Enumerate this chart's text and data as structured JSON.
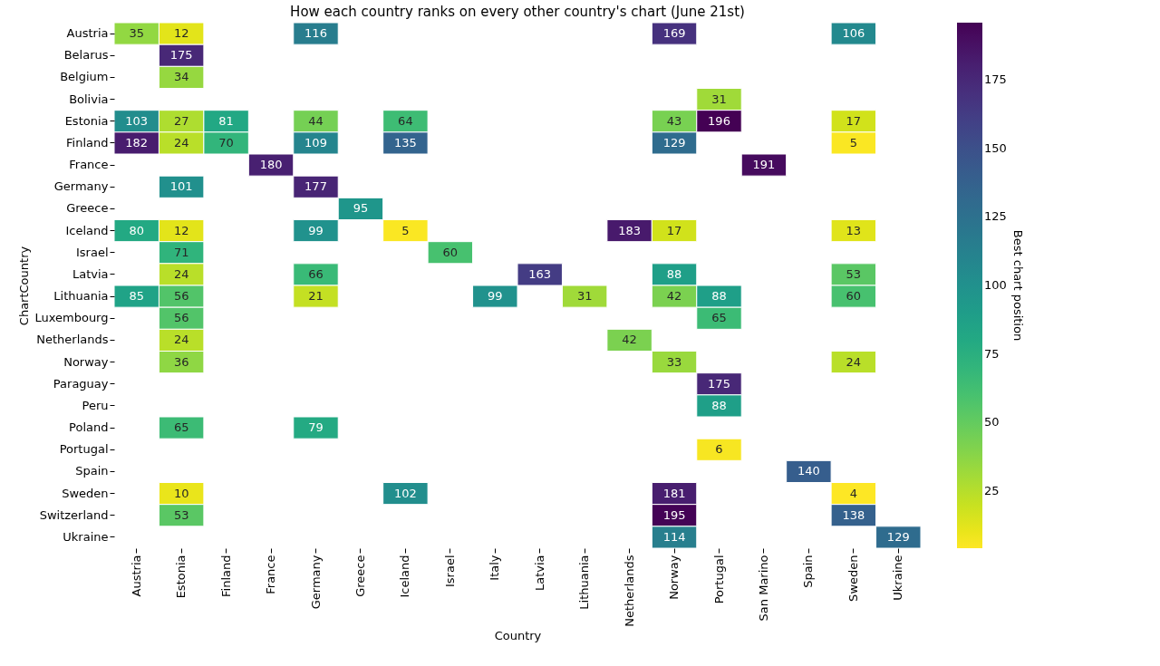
{
  "chart_data": {
    "type": "heatmap",
    "title": "How each country ranks on every other country's chart (June 21st)",
    "xlabel": "Country",
    "ylabel": "ChartCountry",
    "clabel": "Best chart position",
    "categories": [
      "Austria",
      "Estonia",
      "Finland",
      "France",
      "Germany",
      "Greece",
      "Iceland",
      "Israel",
      "Italy",
      "Latvia",
      "Lithuania",
      "Netherlands",
      "Norway",
      "Portugal",
      "San Marino",
      "Spain",
      "Sweden",
      "Ukraine"
    ],
    "y_categories": [
      "Austria",
      "Belarus",
      "Belgium",
      "Bolivia",
      "Estonia",
      "Finland",
      "France",
      "Germany",
      "Greece",
      "Iceland",
      "Israel",
      "Latvia",
      "Lithuania",
      "Luxembourg",
      "Netherlands",
      "Norway",
      "Paraguay",
      "Peru",
      "Poland",
      "Portugal",
      "Spain",
      "Sweden",
      "Switzerland",
      "Ukraine"
    ],
    "cells": [
      [
        35,
        12,
        null,
        null,
        116,
        null,
        null,
        null,
        null,
        null,
        null,
        null,
        169,
        null,
        null,
        null,
        106,
        null
      ],
      [
        null,
        175,
        null,
        null,
        null,
        null,
        null,
        null,
        null,
        null,
        null,
        null,
        null,
        null,
        null,
        null,
        null,
        null
      ],
      [
        null,
        34,
        null,
        null,
        null,
        null,
        null,
        null,
        null,
        null,
        null,
        null,
        null,
        null,
        null,
        null,
        null,
        null
      ],
      [
        null,
        null,
        null,
        null,
        null,
        null,
        null,
        null,
        null,
        null,
        null,
        null,
        null,
        31,
        null,
        null,
        null,
        null
      ],
      [
        103,
        27,
        81,
        null,
        44,
        null,
        64,
        null,
        null,
        null,
        null,
        null,
        43,
        196,
        null,
        null,
        17,
        null
      ],
      [
        182,
        24,
        70,
        null,
        109,
        null,
        135,
        null,
        null,
        null,
        null,
        null,
        129,
        null,
        null,
        null,
        5,
        null
      ],
      [
        null,
        null,
        null,
        180,
        null,
        null,
        null,
        null,
        null,
        null,
        null,
        null,
        null,
        null,
        191,
        null,
        null,
        null
      ],
      [
        null,
        101,
        null,
        null,
        177,
        null,
        null,
        null,
        null,
        null,
        null,
        null,
        null,
        null,
        null,
        null,
        null,
        null
      ],
      [
        null,
        null,
        null,
        null,
        null,
        95,
        null,
        null,
        null,
        null,
        null,
        null,
        null,
        null,
        null,
        null,
        null,
        null
      ],
      [
        80,
        12,
        null,
        null,
        99,
        null,
        5,
        null,
        null,
        null,
        null,
        183,
        17,
        null,
        null,
        null,
        13,
        null
      ],
      [
        null,
        71,
        null,
        null,
        null,
        null,
        null,
        60,
        null,
        null,
        null,
        null,
        null,
        null,
        null,
        null,
        null,
        null
      ],
      [
        null,
        24,
        null,
        null,
        66,
        null,
        null,
        null,
        null,
        163,
        null,
        null,
        88,
        null,
        null,
        null,
        53,
        null
      ],
      [
        85,
        56,
        null,
        null,
        21,
        null,
        null,
        null,
        99,
        null,
        31,
        null,
        42,
        88,
        null,
        null,
        60,
        null
      ],
      [
        null,
        56,
        null,
        null,
        null,
        null,
        null,
        null,
        null,
        null,
        null,
        null,
        null,
        65,
        null,
        null,
        null,
        null
      ],
      [
        null,
        24,
        null,
        null,
        null,
        null,
        null,
        null,
        null,
        null,
        null,
        42,
        null,
        null,
        null,
        null,
        null,
        null
      ],
      [
        null,
        36,
        null,
        null,
        null,
        null,
        null,
        null,
        null,
        null,
        null,
        null,
        33,
        null,
        null,
        null,
        24,
        null
      ],
      [
        null,
        null,
        null,
        null,
        null,
        null,
        null,
        null,
        null,
        null,
        null,
        null,
        null,
        175,
        null,
        null,
        null,
        null
      ],
      [
        null,
        null,
        null,
        null,
        null,
        null,
        null,
        null,
        null,
        null,
        null,
        null,
        null,
        88,
        null,
        null,
        null,
        null
      ],
      [
        null,
        65,
        null,
        null,
        79,
        null,
        null,
        null,
        null,
        null,
        null,
        null,
        null,
        null,
        null,
        null,
        null,
        null
      ],
      [
        null,
        null,
        null,
        null,
        null,
        null,
        null,
        null,
        null,
        null,
        null,
        null,
        null,
        6,
        null,
        null,
        null,
        null
      ],
      [
        null,
        null,
        null,
        null,
        null,
        null,
        null,
        null,
        null,
        null,
        null,
        null,
        null,
        null,
        null,
        140,
        null,
        null
      ],
      [
        null,
        10,
        null,
        null,
        null,
        null,
        102,
        null,
        null,
        null,
        null,
        null,
        181,
        null,
        null,
        null,
        4,
        null
      ],
      [
        null,
        53,
        null,
        null,
        null,
        null,
        null,
        null,
        null,
        null,
        null,
        null,
        195,
        null,
        null,
        null,
        138,
        null
      ],
      [
        null,
        null,
        null,
        null,
        null,
        null,
        null,
        null,
        null,
        null,
        null,
        null,
        114,
        null,
        null,
        null,
        null,
        129
      ]
    ],
    "clim": [
      4,
      196
    ],
    "cticks": [
      25,
      50,
      75,
      100,
      125,
      150,
      175
    ],
    "data_labels": true
  }
}
